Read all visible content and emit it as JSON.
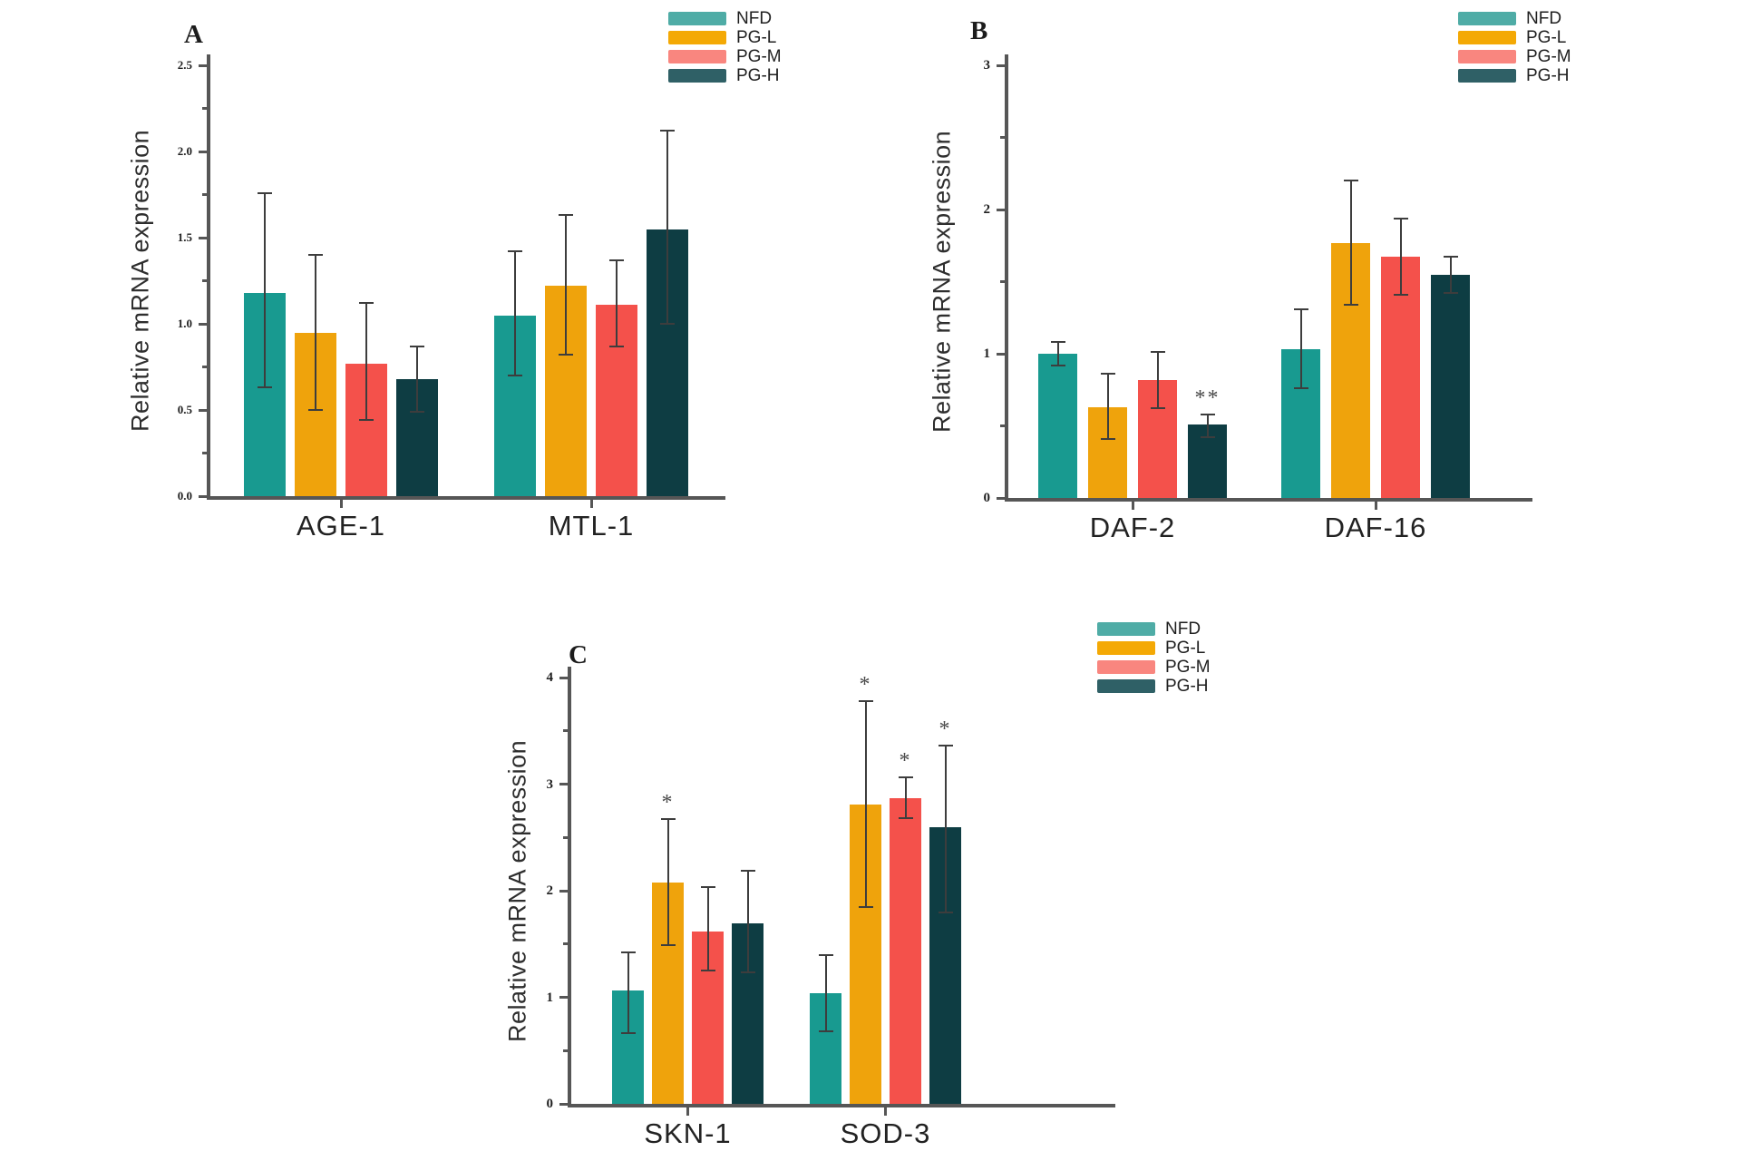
{
  "figure": {
    "background": "#ffffff",
    "axis_color": "#565656",
    "error_bar_color": "#3d3d3d",
    "sig_color": "#4a4a4a",
    "legend_labels": [
      "NFD",
      "PG-L",
      "PG-M",
      "PG-H"
    ],
    "series": [
      {
        "name": "NFD",
        "legend_color": "#4FACA6",
        "bar_color": "#189A90"
      },
      {
        "name": "PG-L",
        "legend_color": "#F4A905",
        "bar_color": "#EFA30C"
      },
      {
        "name": "PG-M",
        "legend_color": "#F9867F",
        "bar_color": "#F4514B"
      },
      {
        "name": "PG-H",
        "legend_color": "#2F6066",
        "bar_color": "#0E3D43"
      }
    ]
  },
  "chart_data": [
    {
      "type": "bar",
      "panel": "A",
      "ylabel": "Relative mRNA expression",
      "categories": [
        "AGE-1",
        "MTL-1"
      ],
      "ylim": [
        0,
        2.5
      ],
      "grid": false,
      "legend_position": "top-right",
      "minor_step": 0.25,
      "yticks": [
        {
          "v": 0,
          "label": "0.0"
        },
        {
          "v": 0.5,
          "label": "0.5"
        },
        {
          "v": 1.0,
          "label": "1.0"
        },
        {
          "v": 1.5,
          "label": "1.5"
        },
        {
          "v": 2.0,
          "label": "2.0"
        },
        {
          "v": 2.5,
          "label": "2.5"
        }
      ],
      "series": [
        {
          "name": "NFD",
          "values": [
            1.18,
            1.05
          ],
          "err_lo": [
            0.63,
            0.7
          ],
          "err_hi": [
            1.76,
            1.42
          ],
          "sig": [
            "",
            ""
          ]
        },
        {
          "name": "PG-L",
          "values": [
            0.95,
            1.22
          ],
          "err_lo": [
            0.5,
            0.82
          ],
          "err_hi": [
            1.4,
            1.63
          ],
          "sig": [
            "",
            ""
          ]
        },
        {
          "name": "PG-M",
          "values": [
            0.77,
            1.11
          ],
          "err_lo": [
            0.44,
            0.87
          ],
          "err_hi": [
            1.12,
            1.37
          ],
          "sig": [
            "",
            ""
          ]
        },
        {
          "name": "PG-H",
          "values": [
            0.68,
            1.55
          ],
          "err_lo": [
            0.49,
            1.0
          ],
          "err_hi": [
            0.87,
            2.12
          ],
          "sig": [
            "",
            ""
          ]
        }
      ]
    },
    {
      "type": "bar",
      "panel": "B",
      "ylabel": "Relative mRNA expression",
      "categories": [
        "DAF-2",
        "DAF-16"
      ],
      "ylim": [
        0,
        3
      ],
      "grid": false,
      "legend_position": "top-right",
      "minor_step": 0.5,
      "yticks": [
        {
          "v": 0,
          "label": "0"
        },
        {
          "v": 1,
          "label": "1"
        },
        {
          "v": 2,
          "label": "2"
        },
        {
          "v": 3,
          "label": "3"
        }
      ],
      "series": [
        {
          "name": "NFD",
          "values": [
            1.0,
            1.03
          ],
          "err_lo": [
            0.92,
            0.76
          ],
          "err_hi": [
            1.08,
            1.31
          ],
          "sig": [
            "",
            ""
          ]
        },
        {
          "name": "PG-L",
          "values": [
            0.63,
            1.77
          ],
          "err_lo": [
            0.41,
            1.34
          ],
          "err_hi": [
            0.86,
            2.2
          ],
          "sig": [
            "",
            ""
          ]
        },
        {
          "name": "PG-M",
          "values": [
            0.82,
            1.67
          ],
          "err_lo": [
            0.62,
            1.41
          ],
          "err_hi": [
            1.01,
            1.94
          ],
          "sig": [
            "",
            ""
          ]
        },
        {
          "name": "PG-H",
          "values": [
            0.51,
            1.55
          ],
          "err_lo": [
            0.42,
            1.42
          ],
          "err_hi": [
            0.58,
            1.67
          ],
          "sig": [
            "**",
            ""
          ]
        }
      ]
    },
    {
      "type": "bar",
      "panel": "C",
      "ylabel": "Relative mRNA expression",
      "categories": [
        "SKN-1",
        "SOD-3"
      ],
      "ylim": [
        0,
        4
      ],
      "grid": false,
      "legend_position": "top-right",
      "minor_step": 0.5,
      "yticks": [
        {
          "v": 0,
          "label": "0"
        },
        {
          "v": 1,
          "label": "1"
        },
        {
          "v": 2,
          "label": "2"
        },
        {
          "v": 3,
          "label": "3"
        },
        {
          "v": 4,
          "label": "4"
        }
      ],
      "series": [
        {
          "name": "NFD",
          "values": [
            1.06,
            1.04
          ],
          "err_lo": [
            0.66,
            0.68
          ],
          "err_hi": [
            1.42,
            1.4
          ],
          "sig": [
            "",
            ""
          ]
        },
        {
          "name": "PG-L",
          "values": [
            2.08,
            2.81
          ],
          "err_lo": [
            1.49,
            1.85
          ],
          "err_hi": [
            2.67,
            3.78
          ],
          "sig": [
            "*",
            "*"
          ]
        },
        {
          "name": "PG-M",
          "values": [
            1.62,
            2.87
          ],
          "err_lo": [
            1.25,
            2.68
          ],
          "err_hi": [
            2.03,
            3.06
          ],
          "sig": [
            "",
            "*"
          ]
        },
        {
          "name": "PG-H",
          "values": [
            1.69,
            2.6
          ],
          "err_lo": [
            1.23,
            1.8
          ],
          "err_hi": [
            2.19,
            3.36
          ],
          "sig": [
            "",
            "*"
          ]
        }
      ]
    }
  ]
}
